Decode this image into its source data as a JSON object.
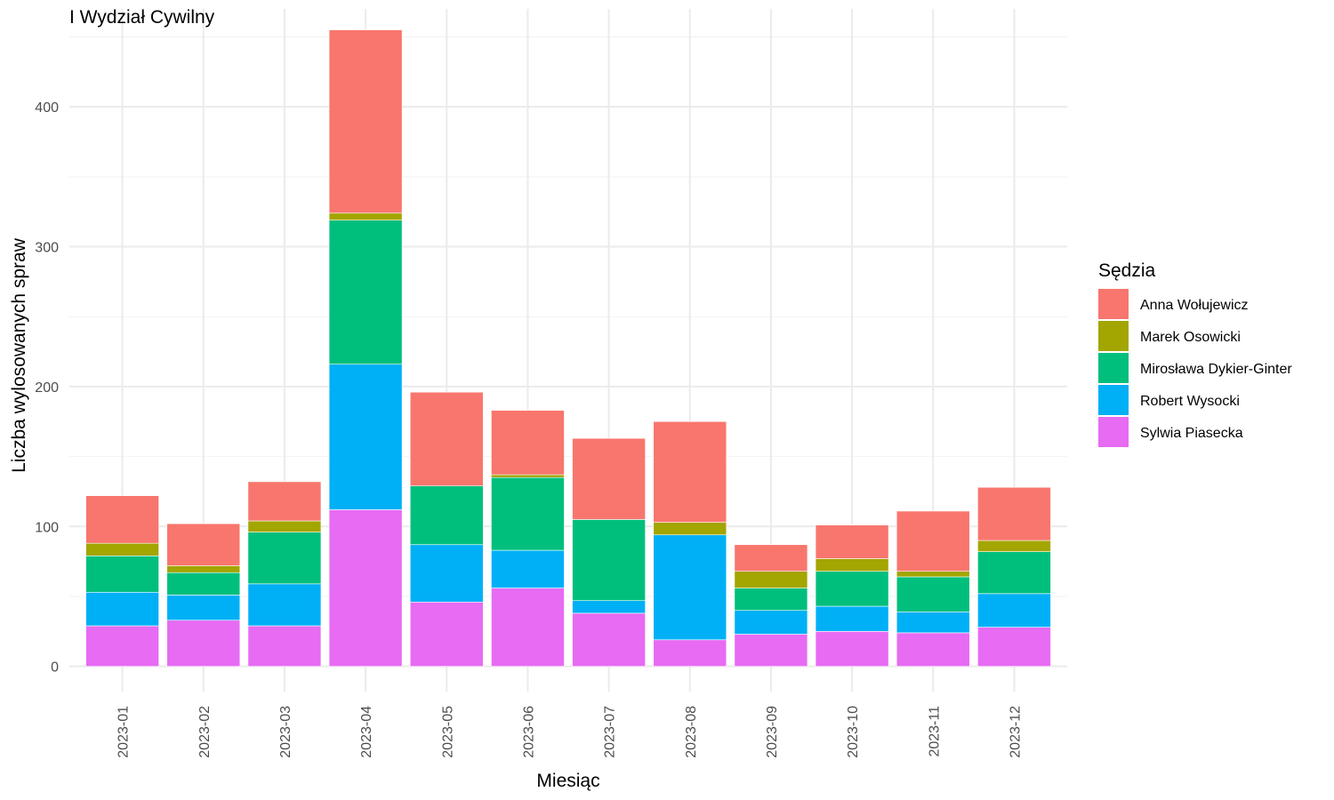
{
  "chart_data": {
    "type": "bar",
    "stacked": true,
    "title": "I Wydział Cywilny",
    "xlabel": "Miesiąc",
    "ylabel": "Liczba wylosowanych spraw",
    "ylim": [
      -18,
      470
    ],
    "yticks": [
      0,
      100,
      200,
      300,
      400
    ],
    "grid": true,
    "legend_position": "right",
    "legend_title": "Sędzia",
    "categories": [
      "2023-01",
      "2023-02",
      "2023-03",
      "2023-04",
      "2023-05",
      "2023-06",
      "2023-07",
      "2023-08",
      "2023-09",
      "2023-10",
      "2023-11",
      "2023-12"
    ],
    "series": [
      {
        "name": "Sylwia Piasecka",
        "color": "#E76BF3",
        "values": [
          29,
          33,
          29,
          112,
          46,
          56,
          38,
          19,
          23,
          25,
          24,
          28
        ]
      },
      {
        "name": "Robert Wysocki",
        "color": "#00B0F6",
        "values": [
          24,
          18,
          30,
          104,
          41,
          27,
          9,
          75,
          17,
          18,
          15,
          24
        ]
      },
      {
        "name": "Mirosława Dykier-Ginter",
        "color": "#00BF7D",
        "values": [
          26,
          16,
          37,
          103,
          42,
          52,
          58,
          0,
          16,
          25,
          25,
          30
        ]
      },
      {
        "name": "Marek Osowicki",
        "color": "#A3A500",
        "values": [
          9,
          5,
          8,
          5,
          0,
          2,
          0,
          9,
          12,
          9,
          4,
          8
        ]
      },
      {
        "name": "Anna Wołujewicz",
        "color": "#F8766D",
        "values": [
          34,
          30,
          28,
          131,
          67,
          46,
          58,
          72,
          19,
          24,
          43,
          38
        ]
      }
    ],
    "legend_order": [
      "Anna Wołujewicz",
      "Marek Osowicki",
      "Mirosława Dykier-Ginter",
      "Robert Wysocki",
      "Sylwia Piasecka"
    ]
  }
}
